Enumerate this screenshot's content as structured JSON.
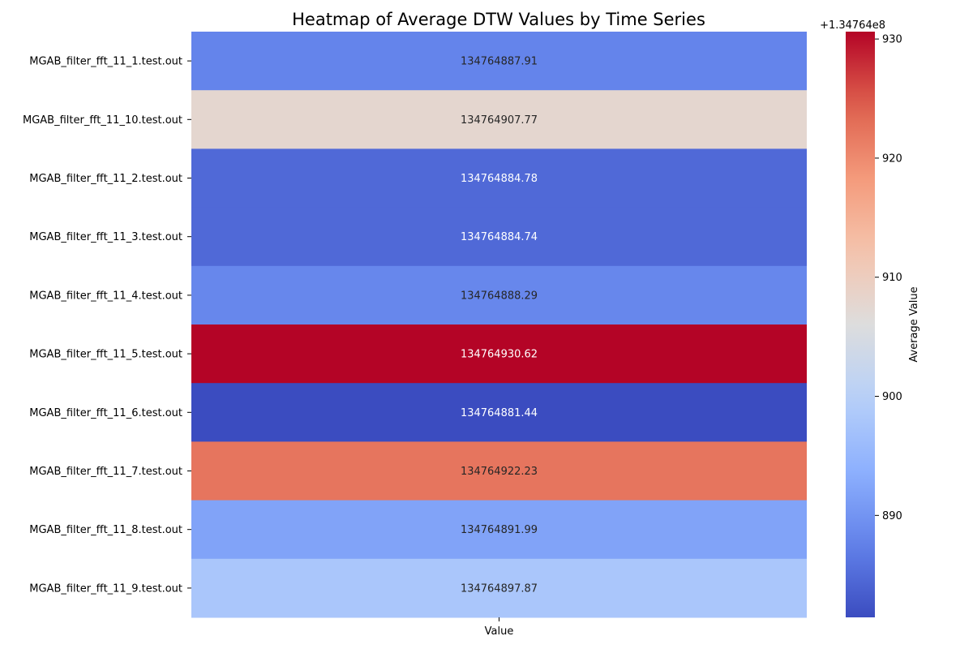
{
  "chart_data": {
    "type": "heatmap",
    "title": "Heatmap of Average DTW Values by Time Series",
    "xlabel": "Value",
    "x_tick_labels": [
      "Value"
    ],
    "rows": [
      {
        "label": "MGAB_filter_fft_11_1.test.out",
        "value": 134764887.91,
        "text": "134764887.91"
      },
      {
        "label": "MGAB_filter_fft_11_10.test.out",
        "value": 134764907.77,
        "text": "134764907.77"
      },
      {
        "label": "MGAB_filter_fft_11_2.test.out",
        "value": 134764884.78,
        "text": "134764884.78"
      },
      {
        "label": "MGAB_filter_fft_11_3.test.out",
        "value": 134764884.74,
        "text": "134764884.74"
      },
      {
        "label": "MGAB_filter_fft_11_4.test.out",
        "value": 134764888.29,
        "text": "134764888.29"
      },
      {
        "label": "MGAB_filter_fft_11_5.test.out",
        "value": 134764930.62,
        "text": "134764930.62"
      },
      {
        "label": "MGAB_filter_fft_11_6.test.out",
        "value": 134764881.44,
        "text": "134764881.44"
      },
      {
        "label": "MGAB_filter_fft_11_7.test.out",
        "value": 134764922.23,
        "text": "134764922.23"
      },
      {
        "label": "MGAB_filter_fft_11_8.test.out",
        "value": 134764891.99,
        "text": "134764891.99"
      },
      {
        "label": "MGAB_filter_fft_11_9.test.out",
        "value": 134764897.87,
        "text": "134764897.87"
      }
    ],
    "colorbar": {
      "label": "Average Value",
      "colormap": "coolwarm",
      "offset_text": "+1.34764e8",
      "offset": 134764000,
      "range": [
        134764881.44,
        134764930.62
      ],
      "ticks": [
        890,
        900,
        910,
        920,
        930
      ],
      "tick_labels": [
        "890",
        "900",
        "910",
        "920",
        "930"
      ]
    }
  }
}
